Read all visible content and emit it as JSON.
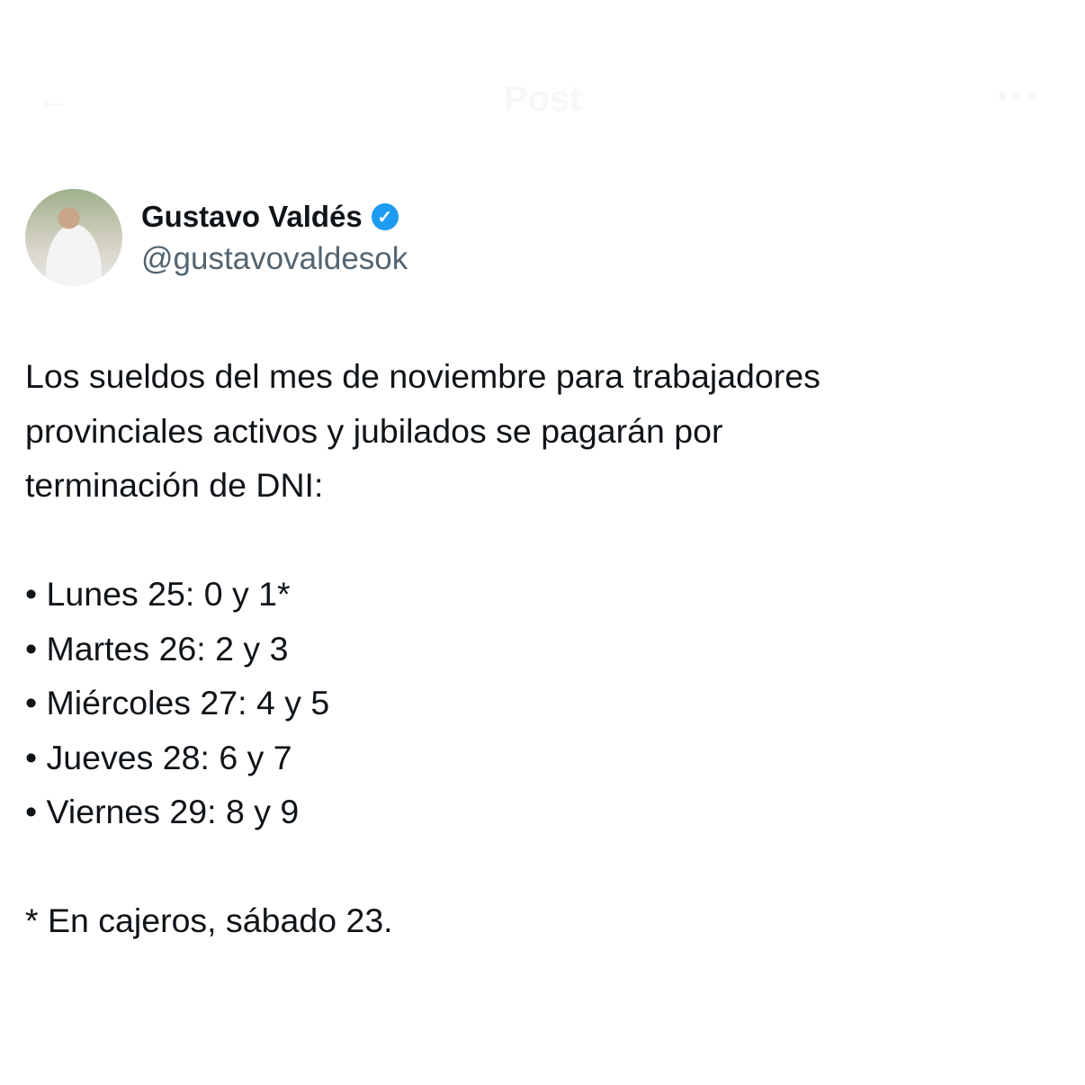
{
  "header": {
    "title": "Post",
    "back_icon": "arrow-left-icon",
    "more_icon": "more-icon"
  },
  "author": {
    "name": "Gustavo Valdés",
    "handle": "@gustavovaldesok",
    "verified": true,
    "badge_color": "#1d9bf0"
  },
  "post": {
    "intro": [
      "Los sueldos del mes de noviembre para trabajadores",
      "provinciales activos y jubilados se pagarán por",
      "terminación de DNI:"
    ],
    "schedule": [
      "• Lunes 25: 0 y 1*",
      "• Martes 26: 2 y 3",
      "• Miércoles 27: 4 y 5",
      "• Jueves 28: 6 y 7",
      "• Viernes 29: 8 y 9"
    ],
    "footnote": "* En cajeros, sábado 23."
  }
}
